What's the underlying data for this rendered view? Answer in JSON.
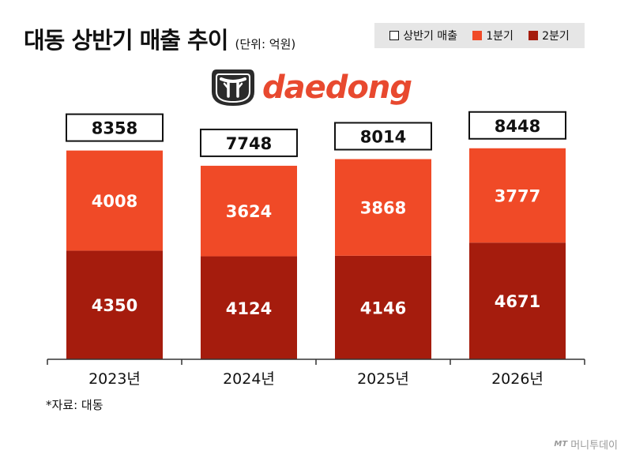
{
  "title": "대동 상반기 매출 추이",
  "unit": "(단위: 억원)",
  "logo_text": "daedong",
  "source": "*자료: 대동",
  "watermark": {
    "mark": "MT",
    "text": "머니투데이"
  },
  "colors": {
    "q1": "#f04a27",
    "q2": "#a51c0d",
    "total_box": "#ffffff",
    "legend_bg": "#e6e6e6"
  },
  "chart_data": {
    "type": "bar",
    "stacked": true,
    "categories": [
      "2023년",
      "2024년",
      "2025년",
      "2026년"
    ],
    "series": [
      {
        "name": "2분기",
        "values": [
          4350,
          4124,
          4146,
          4671
        ]
      },
      {
        "name": "1분기",
        "values": [
          4008,
          3624,
          3868,
          3777
        ]
      }
    ],
    "totals": {
      "name": "상반기 매출",
      "values": [
        8358,
        7748,
        8014,
        8448
      ]
    },
    "legend": [
      "상반기 매출",
      "1분기",
      "2분기"
    ],
    "ylim": [
      0,
      9800
    ],
    "grid": false,
    "legend_position": "top-right"
  }
}
